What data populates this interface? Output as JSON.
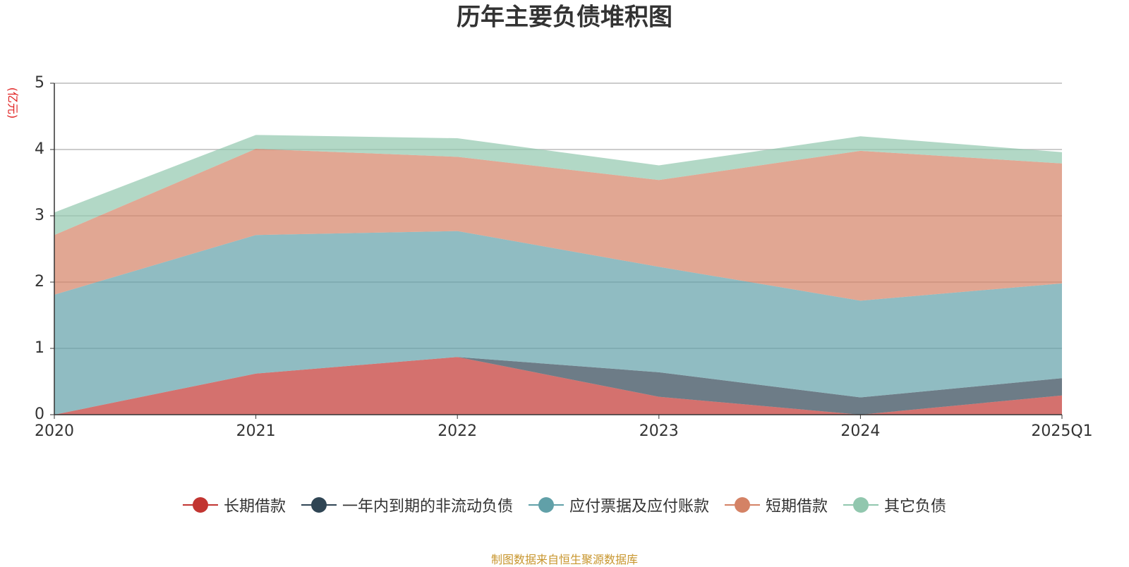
{
  "chart_data": {
    "type": "stacked-area",
    "title": "历年主要负债堆积图",
    "y_label": "(亿元)",
    "categories": [
      "2020",
      "2021",
      "2022",
      "2023",
      "2024",
      "2025Q1"
    ],
    "series": [
      {
        "name": "长期借款",
        "color": "#c23531",
        "values": [
          0,
          0.62,
          0.87,
          0.27,
          0,
          0.29
        ]
      },
      {
        "name": "一年内到期的非流动负债",
        "color": "#2f4554",
        "values": [
          0,
          0,
          0,
          0.37,
          0.26,
          0.26
        ]
      },
      {
        "name": "应付票据及应付账款",
        "color": "#61a0a8",
        "values": [
          1.81,
          2.09,
          1.9,
          1.59,
          1.46,
          1.43
        ]
      },
      {
        "name": "短期借款",
        "color": "#d48265",
        "values": [
          0.9,
          1.3,
          1.12,
          1.31,
          2.26,
          1.81
        ]
      },
      {
        "name": "其它负债",
        "color": "#91c7ae",
        "values": [
          0.34,
          0.21,
          0.28,
          0.22,
          0.22,
          0.17
        ]
      }
    ],
    "ylim": [
      0,
      5
    ],
    "yticks": [
      0,
      1,
      2,
      3,
      4,
      5
    ],
    "grid": true,
    "source": "制图数据来自恒生聚源数据库"
  }
}
